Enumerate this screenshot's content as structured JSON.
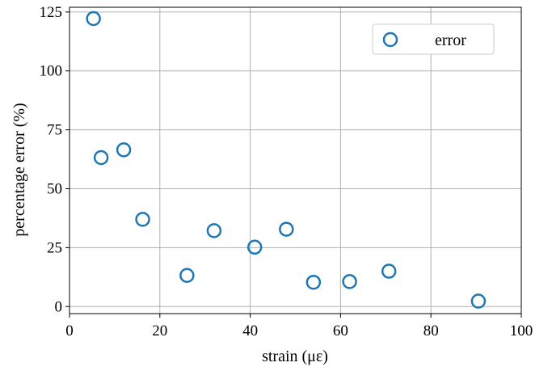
{
  "chart_data": {
    "type": "scatter",
    "xlabel": "strain (με)",
    "ylabel": "percentage error (%)",
    "xlim": [
      0,
      100
    ],
    "ylim": [
      -3,
      127
    ],
    "xticks": [
      0,
      20,
      40,
      60,
      80,
      100
    ],
    "xtick_labels": [
      "0",
      "20",
      "40",
      "60",
      "80",
      "100"
    ],
    "yticks": [
      0,
      25,
      50,
      75,
      100,
      125
    ],
    "ytick_labels": [
      "0",
      "25",
      "50",
      "75",
      "100",
      "125"
    ],
    "grid": true,
    "legend_position": "top-right",
    "series": [
      {
        "name": "error",
        "color": "#1f77b4",
        "marker": "hollow-circle",
        "x": [
          5.3,
          7.0,
          12.0,
          16.2,
          26.0,
          32.0,
          41.0,
          48.0,
          54.0,
          62.0,
          70.7,
          90.5
        ],
        "y": [
          122.2,
          63.2,
          66.5,
          37.0,
          13.2,
          32.2,
          25.2,
          32.8,
          10.3,
          10.6,
          15.0,
          2.3
        ]
      }
    ]
  }
}
